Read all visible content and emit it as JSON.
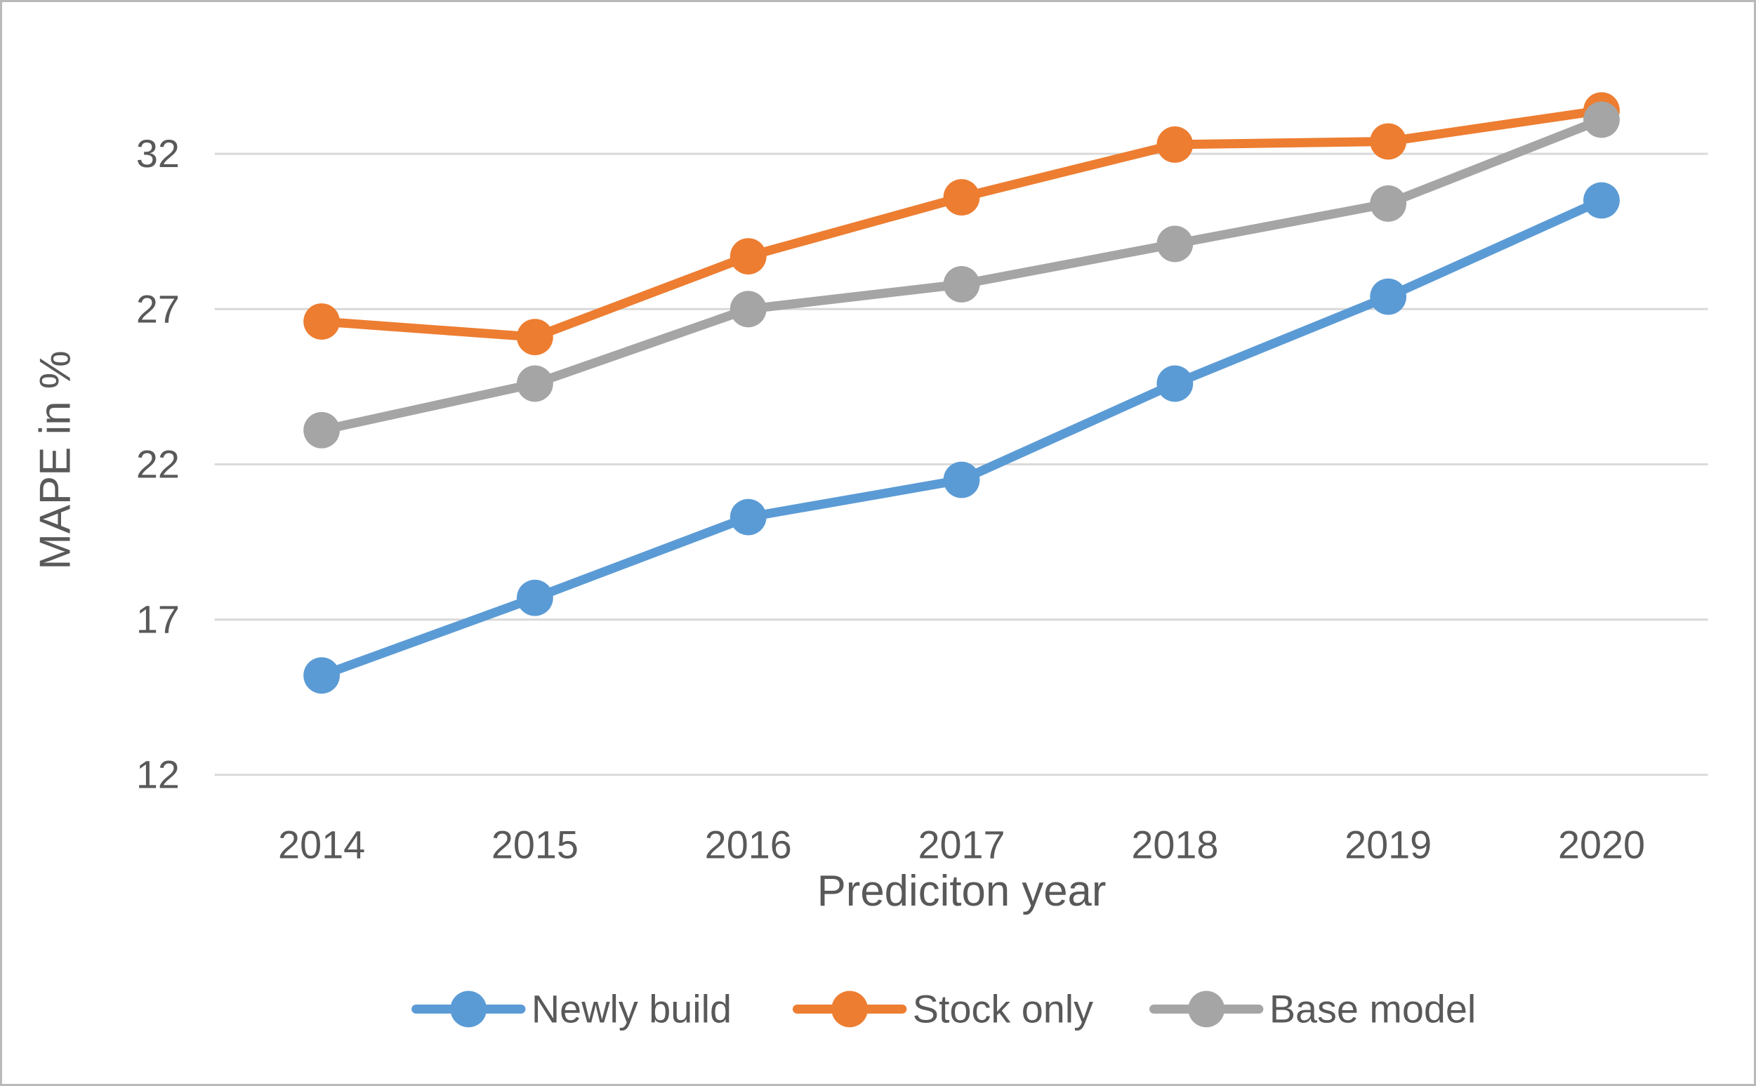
{
  "figure": {
    "background": "#ffffff",
    "border_color": "#b9b9b9",
    "text_color": "#595959",
    "gridline_color": "#d9d9d9"
  },
  "chart_data": {
    "type": "line",
    "title": "",
    "xlabel": "Prediciton year",
    "ylabel": "MAPE in %",
    "categories": [
      "2014",
      "2015",
      "2016",
      "2017",
      "2018",
      "2019",
      "2020"
    ],
    "yticks": [
      12,
      17,
      22,
      27,
      32
    ],
    "ylim": [
      12,
      35
    ],
    "grid": true,
    "legend_position": "bottom",
    "marker": "circle",
    "series": [
      {
        "name": "Newly build",
        "color": "#5B9BD5",
        "values": [
          15.2,
          17.7,
          20.3,
          21.5,
          24.6,
          27.4,
          30.5
        ]
      },
      {
        "name": "Stock only",
        "color": "#ED7D31",
        "values": [
          26.6,
          26.1,
          28.7,
          30.6,
          32.3,
          32.4,
          33.4
        ]
      },
      {
        "name": "Base model",
        "color": "#A5A5A5",
        "values": [
          23.1,
          24.6,
          27.0,
          27.8,
          29.1,
          30.4,
          33.1
        ]
      }
    ]
  }
}
